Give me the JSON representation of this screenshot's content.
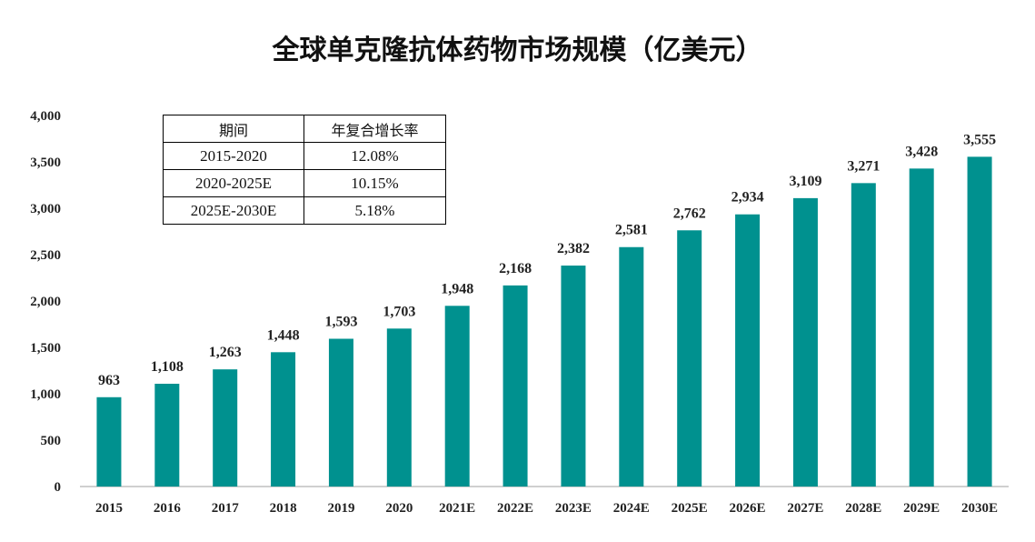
{
  "colors": {
    "bar": "#00918f",
    "axis": "#bfbfbf",
    "text": "#222222"
  },
  "chart_data": {
    "type": "bar",
    "title": "全球单克隆抗体药物市场规模（亿美元）",
    "xlabel": "",
    "ylabel": "",
    "ylim": [
      0,
      4000
    ],
    "yticks": [
      "0",
      "500",
      "1,000",
      "1,500",
      "2,000",
      "2,500",
      "3,000",
      "3,500",
      "4,000"
    ],
    "ytick_values": [
      0,
      500,
      1000,
      1500,
      2000,
      2500,
      3000,
      3500,
      4000
    ],
    "categories": [
      "2015",
      "2016",
      "2017",
      "2018",
      "2019",
      "2020",
      "2021E",
      "2022E",
      "2023E",
      "2024E",
      "2025E",
      "2026E",
      "2027E",
      "2028E",
      "2029E",
      "2030E"
    ],
    "values": [
      963,
      1108,
      1263,
      1448,
      1593,
      1703,
      1948,
      2168,
      2382,
      2581,
      2762,
      2934,
      3109,
      3271,
      3428,
      3555
    ],
    "value_labels": [
      "963",
      "1,108",
      "1,263",
      "1,448",
      "1,593",
      "1,703",
      "1,948",
      "2,168",
      "2,382",
      "2,581",
      "2,762",
      "2,934",
      "3,109",
      "3,271",
      "3,428",
      "3,555"
    ],
    "grid": false,
    "legend": "none"
  },
  "cagr_table": {
    "headers": [
      "期间",
      "年复合增长率"
    ],
    "rows": [
      [
        "2015-2020",
        "12.08%"
      ],
      [
        "2020-2025E",
        "10.15%"
      ],
      [
        "2025E-2030E",
        "5.18%"
      ]
    ]
  }
}
